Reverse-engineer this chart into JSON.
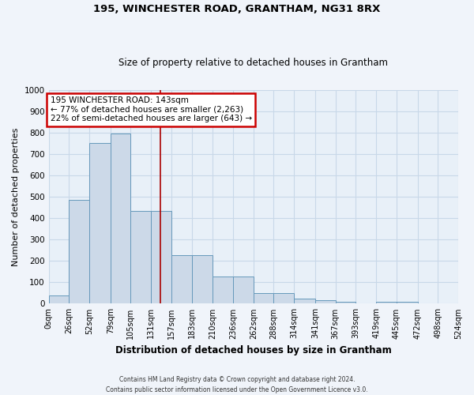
{
  "title1": "195, WINCHESTER ROAD, GRANTHAM, NG31 8RX",
  "title2": "Size of property relative to detached houses in Grantham",
  "xlabel": "Distribution of detached houses by size in Grantham",
  "ylabel": "Number of detached properties",
  "bar_edges": [
    0,
    26,
    52,
    79,
    105,
    131,
    157,
    183,
    210,
    236,
    262,
    288,
    314,
    341,
    367,
    393,
    419,
    445,
    472,
    498,
    524
  ],
  "bar_heights": [
    40,
    485,
    750,
    795,
    435,
    435,
    225,
    225,
    128,
    128,
    50,
    50,
    25,
    15,
    10,
    0,
    10,
    10,
    0,
    0
  ],
  "bar_color": "#ccd9e8",
  "bar_edge_color": "#6699bb",
  "bar_edge_width": 0.7,
  "red_line_x": 143,
  "red_line_color": "#aa0000",
  "ylim": [
    0,
    1000
  ],
  "yticks": [
    0,
    100,
    200,
    300,
    400,
    500,
    600,
    700,
    800,
    900,
    1000
  ],
  "xtick_labels": [
    "0sqm",
    "26sqm",
    "52sqm",
    "79sqm",
    "105sqm",
    "131sqm",
    "157sqm",
    "183sqm",
    "210sqm",
    "236sqm",
    "262sqm",
    "288sqm",
    "314sqm",
    "341sqm",
    "367sqm",
    "393sqm",
    "419sqm",
    "445sqm",
    "472sqm",
    "498sqm",
    "524sqm"
  ],
  "annotation_line1": "195 WINCHESTER ROAD: 143sqm",
  "annotation_line2": "← 77% of detached houses are smaller (2,263)",
  "annotation_line3": "22% of semi-detached houses are larger (643) →",
  "annotation_box_color": "#ffffff",
  "annotation_box_edge": "#cc0000",
  "grid_color": "#c8d8e8",
  "bg_color": "#e8f0f8",
  "fig_bg_color": "#f0f4fa",
  "footer1": "Contains HM Land Registry data © Crown copyright and database right 2024.",
  "footer2": "Contains public sector information licensed under the Open Government Licence v3.0."
}
